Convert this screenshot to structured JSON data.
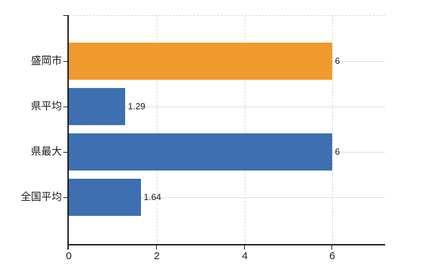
{
  "chart_data": {
    "type": "bar",
    "orientation": "horizontal",
    "title": "",
    "categories": [
      "盛岡市",
      "県平均",
      "県最大",
      "全国平均"
    ],
    "values": [
      6,
      1.29,
      6,
      1.64
    ],
    "value_labels": [
      "6",
      "1.29",
      "6",
      "1.64"
    ],
    "bar_colors": [
      "#f0992d",
      "#3e6fb1",
      "#3e6fb1",
      "#3e6fb1"
    ],
    "xlabel": "",
    "ylabel": "",
    "xlim": [
      0,
      7.2
    ],
    "xticks": [
      0,
      2,
      4,
      6
    ],
    "xtick_labels": [
      "0",
      "2",
      "4",
      "6"
    ],
    "grid": true,
    "legend": false,
    "colors": {
      "series_orange": "#f0992d",
      "series_blue": "#3e6fb1",
      "axis": "#1a1a1a",
      "horizontal_gridline": "#dbe0d7",
      "dashed_gridline": "#d9d6d6",
      "label_text": "#1a1a1a",
      "background": "#ffffff"
    }
  }
}
